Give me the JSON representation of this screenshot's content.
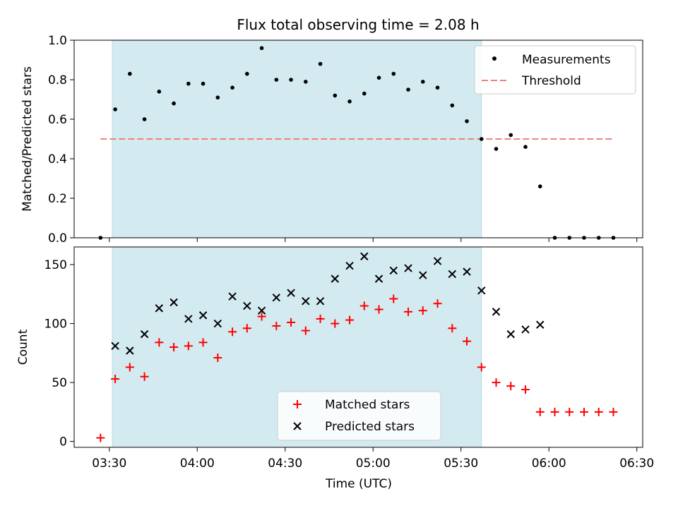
{
  "figure": {
    "title": "Flux total observing time = 2.08 h",
    "xlabel": "Time (UTC)"
  },
  "chart_data": [
    {
      "type": "scatter",
      "panel": "top",
      "title": "Flux total observing time = 2.08 h",
      "ylabel": "Matched/Predicted stars",
      "xlim": [
        "03:18",
        "06:32"
      ],
      "ylim": [
        0,
        1.0
      ],
      "yticks": [
        0.0,
        0.2,
        0.4,
        0.6,
        0.8,
        1.0
      ],
      "ytick_labels": [
        "0.0",
        "0.2",
        "0.4",
        "0.6",
        "0.8",
        "1.0"
      ],
      "shaded_region": {
        "start": "03:31",
        "end": "05:37",
        "color": "#d3eaf0"
      },
      "legend": {
        "position": "upper right",
        "entries": [
          "Measurements",
          "Threshold"
        ]
      },
      "threshold": {
        "name": "Threshold",
        "value": 0.5,
        "x_start": "03:27",
        "x_end": "06:22",
        "color": "#f08080",
        "style": "dashed"
      },
      "series": [
        {
          "name": "Measurements",
          "color": "#000000",
          "marker": "dot",
          "x": [
            "03:27",
            "03:32",
            "03:37",
            "03:42",
            "03:47",
            "03:52",
            "03:57",
            "04:02",
            "04:07",
            "04:12",
            "04:17",
            "04:22",
            "04:27",
            "04:32",
            "04:37",
            "04:42",
            "04:47",
            "04:52",
            "04:57",
            "05:02",
            "05:07",
            "05:12",
            "05:17",
            "05:22",
            "05:27",
            "05:32",
            "05:37",
            "05:42",
            "05:47",
            "05:52",
            "05:57",
            "06:02",
            "06:07",
            "06:12",
            "06:17",
            "06:22"
          ],
          "y": [
            0.0,
            0.65,
            0.83,
            0.6,
            0.74,
            0.68,
            0.78,
            0.78,
            0.71,
            0.76,
            0.83,
            0.96,
            0.8,
            0.8,
            0.79,
            0.88,
            0.72,
            0.69,
            0.73,
            0.81,
            0.83,
            0.75,
            0.79,
            0.76,
            0.67,
            0.59,
            0.5,
            0.45,
            0.52,
            0.46,
            0.26,
            0.0,
            0.0,
            0.0,
            0.0,
            0.0
          ]
        }
      ]
    },
    {
      "type": "scatter",
      "panel": "bottom",
      "xlabel": "Time (UTC)",
      "ylabel": "Count",
      "xlim": [
        "03:18",
        "06:32"
      ],
      "ylim": [
        -5,
        165
      ],
      "xticks": [
        "03:30",
        "04:00",
        "04:30",
        "05:00",
        "05:30",
        "06:00",
        "06:30"
      ],
      "yticks": [
        0,
        50,
        100,
        150
      ],
      "ytick_labels": [
        "0",
        "50",
        "100",
        "150"
      ],
      "shaded_region": {
        "start": "03:31",
        "end": "05:37",
        "color": "#d3eaf0"
      },
      "legend": {
        "position": "lower center",
        "entries": [
          "Matched stars",
          "Predicted stars"
        ]
      },
      "series": [
        {
          "name": "Matched stars",
          "color": "#ff0000",
          "marker": "plus",
          "x": [
            "03:27",
            "03:32",
            "03:37",
            "03:42",
            "03:47",
            "03:52",
            "03:57",
            "04:02",
            "04:07",
            "04:12",
            "04:17",
            "04:22",
            "04:27",
            "04:32",
            "04:37",
            "04:42",
            "04:47",
            "04:52",
            "04:57",
            "05:02",
            "05:07",
            "05:12",
            "05:17",
            "05:22",
            "05:27",
            "05:32",
            "05:37",
            "05:42",
            "05:47",
            "05:52",
            "05:57",
            "06:02",
            "06:07",
            "06:12",
            "06:17",
            "06:22"
          ],
          "y": [
            3,
            53,
            63,
            55,
            84,
            80,
            81,
            84,
            71,
            93,
            96,
            106,
            98,
            101,
            94,
            104,
            100,
            103,
            115,
            112,
            121,
            110,
            111,
            117,
            96,
            85,
            63,
            50,
            47,
            44,
            25,
            25,
            25,
            25,
            25,
            25
          ]
        },
        {
          "name": "Predicted stars",
          "color": "#000000",
          "marker": "x",
          "x": [
            "03:32",
            "03:37",
            "03:42",
            "03:47",
            "03:52",
            "03:57",
            "04:02",
            "04:07",
            "04:12",
            "04:17",
            "04:22",
            "04:27",
            "04:32",
            "04:37",
            "04:42",
            "04:47",
            "04:52",
            "04:57",
            "05:02",
            "05:07",
            "05:12",
            "05:17",
            "05:22",
            "05:27",
            "05:32",
            "05:37",
            "05:42",
            "05:47",
            "05:52",
            "05:57"
          ],
          "y": [
            81,
            77,
            91,
            113,
            118,
            104,
            107,
            100,
            123,
            115,
            111,
            122,
            126,
            119,
            119,
            138,
            149,
            157,
            138,
            145,
            147,
            141,
            153,
            142,
            144,
            128,
            110,
            91,
            95,
            99
          ]
        }
      ]
    }
  ]
}
